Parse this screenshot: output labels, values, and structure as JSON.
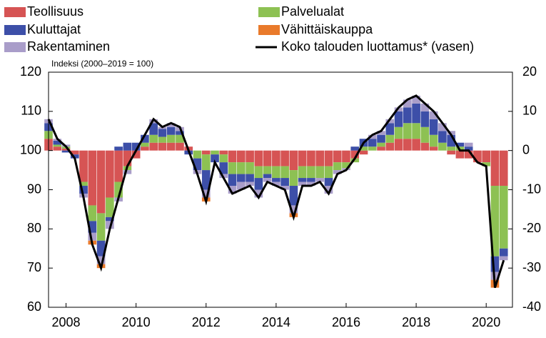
{
  "chart_data": {
    "type": "bar",
    "subtitle": "Indeksi (2000–2019 = 100)",
    "x": [
      2007.5,
      2007.75,
      2008.0,
      2008.25,
      2008.5,
      2008.75,
      2009.0,
      2009.25,
      2009.5,
      2009.75,
      2010.0,
      2010.25,
      2010.5,
      2010.75,
      2011.0,
      2011.25,
      2011.5,
      2011.75,
      2012.0,
      2012.25,
      2012.5,
      2012.75,
      2013.0,
      2013.25,
      2013.5,
      2013.75,
      2014.0,
      2014.25,
      2014.5,
      2014.75,
      2015.0,
      2015.25,
      2015.5,
      2015.75,
      2016.0,
      2016.25,
      2016.5,
      2016.75,
      2017.0,
      2017.25,
      2017.5,
      2017.75,
      2018.0,
      2018.25,
      2018.5,
      2018.75,
      2019.0,
      2019.25,
      2019.5,
      2019.75,
      2020.0,
      2020.25,
      2020.5
    ],
    "xlim": [
      2007.5,
      2020.75
    ],
    "xticks": [
      2008,
      2010,
      2012,
      2014,
      2016,
      2018,
      2020
    ],
    "ylim": [
      60,
      120
    ],
    "yticks": [
      60,
      70,
      80,
      90,
      100,
      110,
      120
    ],
    "y2lim": [
      -40,
      20
    ],
    "y2ticks": [
      -40,
      -30,
      -20,
      -10,
      0,
      10,
      20
    ],
    "series": [
      {
        "name": "Teollisuus",
        "color": "#d65454",
        "axis": "y2",
        "values": [
          3,
          1,
          0.5,
          -1,
          -8,
          -14,
          -16,
          -12,
          -8,
          -4,
          -2,
          1,
          2,
          2,
          2,
          2,
          1,
          0,
          -1,
          0,
          -1,
          -3,
          -3,
          -3,
          -4,
          -4,
          -4,
          -4,
          -5,
          -4,
          -4,
          -4,
          -4,
          -3,
          -3,
          -2,
          -1,
          0,
          1,
          2,
          3,
          3,
          3,
          2,
          1,
          0,
          -1,
          -2,
          -2,
          -3,
          -3,
          -9,
          -9
        ]
      },
      {
        "name": "Kuluttajat",
        "color": "#3d4fa8",
        "axis": "y2",
        "values": [
          2,
          1,
          -0.5,
          -1,
          -2,
          -3,
          -4,
          -1,
          1,
          2,
          2,
          2,
          3,
          2,
          2,
          1,
          -1,
          -3,
          -5,
          -2,
          -3,
          -3,
          -2,
          -2,
          -3,
          -1,
          -1,
          -2,
          -5,
          -1,
          -1,
          0,
          -2,
          0,
          0,
          1,
          2,
          2,
          2,
          3,
          4,
          4,
          5,
          4,
          4,
          3,
          3,
          1,
          1,
          0,
          0,
          -4,
          -2
        ]
      },
      {
        "name": "Rakentaminen",
        "color": "#a99dc9",
        "axis": "y2",
        "values": [
          1,
          0.5,
          0.5,
          0,
          -1,
          -2,
          -2,
          -2,
          -1,
          -1,
          0,
          0,
          1,
          0.5,
          1,
          1,
          0,
          -1,
          -2,
          0,
          -1,
          -2,
          -2,
          -1,
          -2,
          -1,
          -1,
          -1,
          -2,
          -1,
          -1,
          -1,
          -2,
          -1,
          -0.5,
          0,
          0,
          1,
          1,
          1,
          1,
          2,
          2,
          2,
          2,
          2,
          1,
          0,
          1,
          0,
          0,
          -2,
          -1
        ]
      },
      {
        "name": "Palvelualat",
        "color": "#8dc153",
        "axis": "y2",
        "values": [
          2,
          0.5,
          0.5,
          0,
          -1,
          -4,
          -7,
          -5,
          -4,
          -1,
          0,
          1,
          2,
          1.5,
          2,
          2,
          0,
          -2,
          -4,
          -1,
          -2,
          -3,
          -3,
          -3,
          -3,
          -2,
          -3,
          -3,
          -4,
          -3,
          -3,
          -3,
          -3,
          -2,
          -1.5,
          -1,
          1,
          1,
          1,
          2,
          3,
          4,
          4,
          4,
          3,
          2,
          1,
          1,
          0,
          0,
          -1,
          -18,
          -16
        ]
      },
      {
        "name": "Vähittäiskauppa",
        "color": "#e97a2b",
        "axis": "y2",
        "values": [
          0,
          0,
          0,
          0,
          0,
          -1,
          -1,
          0,
          0,
          0,
          0,
          0,
          0,
          0,
          0,
          0,
          0,
          0,
          -1,
          0,
          0,
          0,
          0,
          0,
          0,
          0,
          0,
          0,
          -1,
          0,
          0,
          0,
          0,
          0,
          0,
          0,
          0,
          0,
          0,
          0,
          0,
          0,
          0,
          0,
          0,
          0,
          0,
          0,
          0,
          0,
          0,
          -2,
          0
        ]
      },
      {
        "name": "Koko talouden luottamus* (vasen)",
        "color": "#000000",
        "type": "line",
        "values": [
          108,
          103,
          101,
          98,
          88,
          76,
          70,
          80,
          88,
          96,
          100,
          104,
          108,
          106,
          107,
          106,
          100,
          94,
          87,
          97,
          93,
          89,
          90,
          91,
          88,
          92,
          91,
          90,
          83,
          91,
          91,
          92,
          89,
          94,
          95,
          98,
          102,
          104,
          105,
          108,
          111,
          113,
          114,
          112,
          110,
          107,
          104,
          100,
          100,
          97,
          96,
          65,
          72
        ]
      }
    ]
  }
}
